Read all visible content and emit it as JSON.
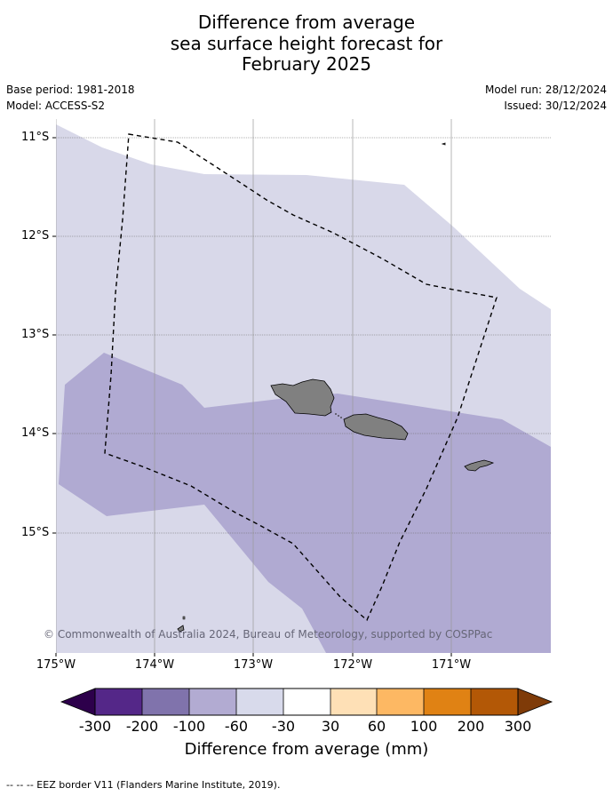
{
  "title": {
    "line1": "Difference from average",
    "line2": "sea surface height forecast for",
    "line3": "February 2025"
  },
  "meta": {
    "base_period": "Base period: 1981-2018",
    "model": "Model: ACCESS-S2",
    "model_run": "Model run: 28/12/2024",
    "issued": "Issued: 30/12/2024"
  },
  "map": {
    "lat_labels": [
      "11°S",
      "12°S",
      "13°S",
      "14°S",
      "15°S"
    ],
    "lon_labels": [
      "175°W",
      "174°W",
      "173°W",
      "172°W",
      "171°W"
    ],
    "colors": {
      "band_minus_30_to_minus_60": "#d8d8e9",
      "band_minus_60_to_minus_100": "#b0aad2",
      "land": "#808080"
    },
    "copyright": "© Commonwealth of Australia 2024, Bureau of Meteorology, supported by COSPPac"
  },
  "colorbar": {
    "ticks": [
      "-300",
      "-200",
      "-100",
      "-60",
      "-30",
      "30",
      "60",
      "100",
      "200",
      "300"
    ],
    "colors": [
      "#2d004b",
      "#542788",
      "#8073ac",
      "#b2abd2",
      "#d8daeb",
      "#ffffff",
      "#fee0b6",
      "#fdb863",
      "#e08214",
      "#b35806",
      "#7f3b08"
    ],
    "label": "Difference from average (mm)"
  },
  "footnote": "--  --  -- EEZ border V11 (Flanders Marine Institute, 2019)."
}
